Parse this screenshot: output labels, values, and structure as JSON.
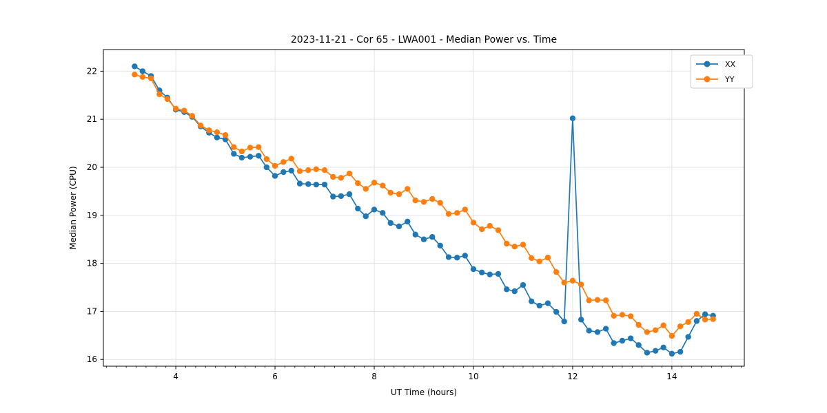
{
  "figure": {
    "background": "#ffffff",
    "spine_color": "#000000",
    "grid_color": "#e3e3e3"
  },
  "chart_data": {
    "type": "line",
    "title": "2023-11-21 - Cor 65 - LWA001 - Median Power vs. Time",
    "xlabel": "UT Time (hours)",
    "ylabel": "Median Power (CPU)",
    "xlim": [
      2.54,
      15.46
    ],
    "ylim": [
      15.86,
      22.45
    ],
    "x_ticks": [
      4,
      6,
      8,
      10,
      12,
      14
    ],
    "y_ticks": [
      16,
      17,
      18,
      19,
      20,
      21,
      22
    ],
    "x_minor_step": 0.2,
    "grid": true,
    "legend_position": "upper right",
    "legend_labels": [
      "XX",
      "YY"
    ],
    "x": [
      3.17,
      3.33,
      3.5,
      3.67,
      3.83,
      4.0,
      4.17,
      4.33,
      4.5,
      4.67,
      4.83,
      5.0,
      5.17,
      5.33,
      5.5,
      5.67,
      5.83,
      6.0,
      6.17,
      6.33,
      6.5,
      6.67,
      6.83,
      7.0,
      7.17,
      7.33,
      7.5,
      7.67,
      7.83,
      8.0,
      8.17,
      8.33,
      8.5,
      8.67,
      8.83,
      9.0,
      9.17,
      9.33,
      9.5,
      9.67,
      9.83,
      10.0,
      10.17,
      10.33,
      10.5,
      10.67,
      10.83,
      11.0,
      11.17,
      11.33,
      11.5,
      11.67,
      11.83,
      12.0,
      12.17,
      12.33,
      12.5,
      12.67,
      12.83,
      13.0,
      13.17,
      13.33,
      13.5,
      13.67,
      13.83,
      14.0,
      14.17,
      14.33,
      14.5,
      14.67,
      14.83
    ],
    "series": [
      {
        "name": "XX",
        "color": "#1f77b4",
        "values": [
          22.1,
          22.0,
          21.9,
          21.6,
          21.45,
          21.2,
          21.15,
          21.05,
          20.85,
          20.72,
          20.62,
          20.58,
          20.28,
          20.2,
          20.22,
          20.24,
          20.0,
          19.82,
          19.9,
          19.93,
          19.66,
          19.65,
          19.64,
          19.64,
          19.39,
          19.4,
          19.44,
          19.14,
          18.98,
          19.12,
          19.05,
          18.84,
          18.77,
          18.87,
          18.6,
          18.5,
          18.55,
          18.37,
          18.13,
          18.12,
          18.16,
          17.88,
          17.81,
          17.77,
          17.78,
          17.46,
          17.42,
          17.55,
          17.21,
          17.12,
          17.17,
          16.99,
          16.79,
          21.02,
          16.83,
          16.6,
          16.57,
          16.64,
          16.34,
          16.39,
          16.44,
          16.3,
          16.14,
          16.18,
          16.25,
          16.12,
          16.16,
          16.47,
          16.8,
          16.94,
          16.91
        ]
      },
      {
        "name": "YY",
        "color": "#ff7f0e",
        "values": [
          21.93,
          21.88,
          21.85,
          21.52,
          21.42,
          21.22,
          21.18,
          21.07,
          20.87,
          20.77,
          20.73,
          20.67,
          20.42,
          20.33,
          20.41,
          20.42,
          20.17,
          20.03,
          20.11,
          20.18,
          19.92,
          19.94,
          19.96,
          19.94,
          19.8,
          19.78,
          19.87,
          19.67,
          19.55,
          19.68,
          19.62,
          19.47,
          19.44,
          19.55,
          19.31,
          19.28,
          19.34,
          19.26,
          19.03,
          19.05,
          19.12,
          18.85,
          18.71,
          18.78,
          18.69,
          18.41,
          18.35,
          18.39,
          18.11,
          18.04,
          18.12,
          17.82,
          17.6,
          17.64,
          17.56,
          17.23,
          17.24,
          17.23,
          16.91,
          16.93,
          16.9,
          16.72,
          16.57,
          16.61,
          16.71,
          16.49,
          16.69,
          16.78,
          16.95,
          16.83,
          16.84
        ]
      }
    ]
  }
}
